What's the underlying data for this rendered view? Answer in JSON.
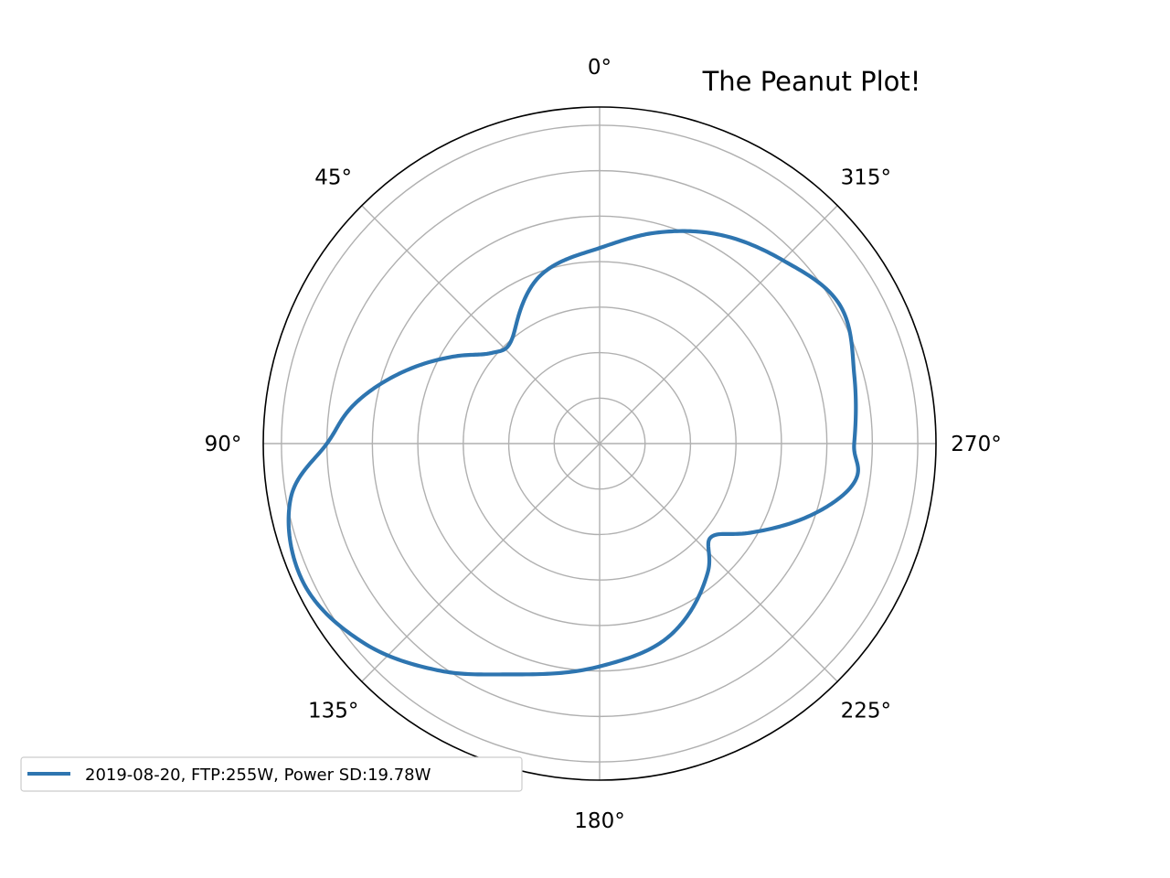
{
  "chart_data": {
    "type": "line",
    "subtype": "polar",
    "title": "The Peanut Plot!",
    "theta_direction": "counterclockwise",
    "theta_zero": "top",
    "theta_ticks": [
      "0°",
      "45°",
      "90°",
      "135°",
      "180°",
      "225°",
      "270°",
      "315°"
    ],
    "theta_tick_values_deg": [
      0,
      45,
      90,
      135,
      180,
      225,
      270,
      315
    ],
    "r_gridlines": [
      1,
      2,
      3,
      4,
      5,
      6,
      7
    ],
    "r_max": 7.4,
    "grid": true,
    "legend_position": "lower-left",
    "series": [
      {
        "name": "2019-08-20, FTP:255W, Power SD:19.78W",
        "color": "#2e75b0",
        "theta_deg": [
          0,
          20,
          40,
          50,
          60,
          80,
          90,
          100,
          115,
          130,
          145,
          160,
          180,
          200,
          220,
          230,
          240,
          260,
          270,
          285,
          300,
          315,
          330,
          345
        ],
        "r": [
          4.3,
          3.9,
          3.0,
          3.1,
          3.8,
          5.4,
          6.0,
          6.9,
          7.2,
          6.8,
          6.1,
          5.4,
          4.9,
          4.5,
          3.7,
          3.2,
          3.9,
          5.6,
          5.6,
          5.8,
          6.1,
          5.7,
          5.3,
          4.8
        ]
      }
    ]
  }
}
